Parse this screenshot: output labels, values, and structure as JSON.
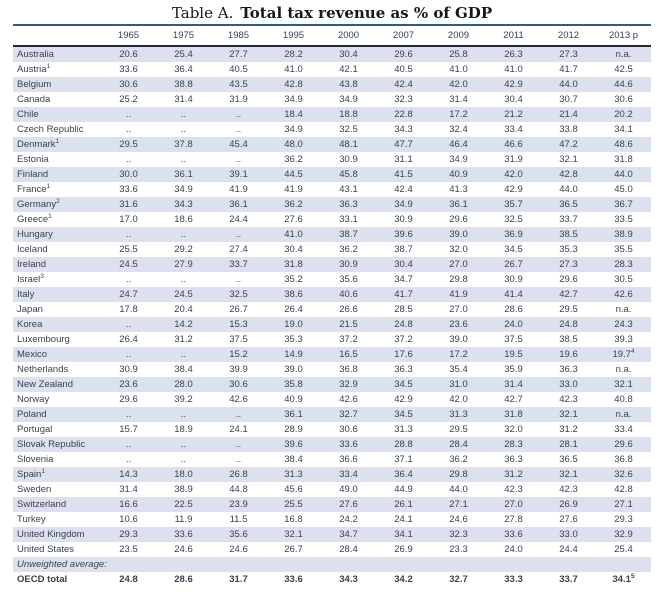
{
  "title": {
    "prefix": "Table A.",
    "main": "Total tax revenue as % of GDP"
  },
  "colors": {
    "row_shade": "#dbe1ee",
    "top_rule": "#2b5f7e",
    "header_rule": "#1e2a37",
    "text": "#39424c"
  },
  "table": {
    "columns": [
      "1965",
      "1975",
      "1985",
      "1995",
      "2000",
      "2007",
      "2009",
      "2011",
      "2012",
      "2013 p"
    ],
    "rows": [
      {
        "country": "Australia",
        "sup": "",
        "style": "",
        "values": [
          "20.6",
          "25.4",
          "27.7",
          "28.2",
          "30.4",
          "29.6",
          "25.8",
          "26.3",
          "27.3",
          "n.a."
        ]
      },
      {
        "country": "Austria",
        "sup": "1",
        "style": "",
        "values": [
          "33.6",
          "36.4",
          "40.5",
          "41.0",
          "42.1",
          "40.5",
          "41.0",
          "41.0",
          "41.7",
          "42.5"
        ]
      },
      {
        "country": "Belgium",
        "sup": "",
        "style": "",
        "values": [
          "30.6",
          "38.8",
          "43.5",
          "42.8",
          "43.8",
          "42.4",
          "42.0",
          "42.9",
          "44.0",
          "44.6"
        ]
      },
      {
        "country": "Canada",
        "sup": "",
        "style": "",
        "values": [
          "25.2",
          "31.4",
          "31.9",
          "34.9",
          "34.9",
          "32.3",
          "31.4",
          "30.4",
          "30.7",
          "30.6"
        ]
      },
      {
        "country": "Chile",
        "sup": "",
        "style": "",
        "values": [
          "..",
          "..",
          "..",
          "18.4",
          "18.8",
          "22.8",
          "17.2",
          "21.2",
          "21.4",
          "20.2"
        ]
      },
      {
        "country": "Czech Republic",
        "sup": "",
        "style": "",
        "values": [
          "..",
          "..",
          "..",
          "34.9",
          "32.5",
          "34.3",
          "32.4",
          "33.4",
          "33.8",
          "34.1"
        ]
      },
      {
        "country": "Denmark",
        "sup": "1",
        "style": "",
        "values": [
          "29.5",
          "37.8",
          "45.4",
          "48.0",
          "48.1",
          "47.7",
          "46.4",
          "46.6",
          "47.2",
          "48.6"
        ]
      },
      {
        "country": "Estonia",
        "sup": "",
        "style": "",
        "values": [
          "..",
          "..",
          "..",
          "36.2",
          "30.9",
          "31.1",
          "34.9",
          "31.9",
          "32.1",
          "31.8"
        ]
      },
      {
        "country": "Finland",
        "sup": "",
        "style": "",
        "values": [
          "30.0",
          "36.1",
          "39.1",
          "44.5",
          "45.8",
          "41.5",
          "40.9",
          "42.0",
          "42.8",
          "44.0"
        ]
      },
      {
        "country": "France",
        "sup": "1",
        "style": "",
        "values": [
          "33.6",
          "34.9",
          "41.9",
          "41.9",
          "43.1",
          "42.4",
          "41.3",
          "42.9",
          "44.0",
          "45.0"
        ]
      },
      {
        "country": "Germany",
        "sup": "2",
        "style": "",
        "values": [
          "31.6",
          "34.3",
          "36.1",
          "36.2",
          "36.3",
          "34.9",
          "36.1",
          "35.7",
          "36.5",
          "36.7"
        ]
      },
      {
        "country": "Greece",
        "sup": "1",
        "style": "",
        "values": [
          "17.0",
          "18.6",
          "24.4",
          "27.6",
          "33.1",
          "30.9",
          "29.6",
          "32.5",
          "33.7",
          "33.5"
        ]
      },
      {
        "country": "Hungary",
        "sup": "",
        "style": "",
        "values": [
          "..",
          "..",
          "..",
          "41.0",
          "38.7",
          "39.6",
          "39.0",
          "36.9",
          "38.5",
          "38.9"
        ]
      },
      {
        "country": "Iceland",
        "sup": "",
        "style": "",
        "values": [
          "25.5",
          "29.2",
          "27.4",
          "30.4",
          "36.2",
          "38.7",
          "32.0",
          "34.5",
          "35.3",
          "35.5"
        ]
      },
      {
        "country": "Ireland",
        "sup": "",
        "style": "",
        "values": [
          "24.5",
          "27.9",
          "33.7",
          "31.8",
          "30.9",
          "30.4",
          "27.0",
          "26.7",
          "27.3",
          "28.3"
        ]
      },
      {
        "country": "Israel",
        "sup": "3",
        "style": "",
        "values": [
          "..",
          "..",
          "..",
          "35.2",
          "35.6",
          "34.7",
          "29.8",
          "30.9",
          "29.6",
          "30.5"
        ]
      },
      {
        "country": "Italy",
        "sup": "",
        "style": "",
        "values": [
          "24.7",
          "24.5",
          "32.5",
          "38.6",
          "40.6",
          "41.7",
          "41.9",
          "41.4",
          "42.7",
          "42.6"
        ]
      },
      {
        "country": "Japan",
        "sup": "",
        "style": "",
        "values": [
          "17.8",
          "20.4",
          "26.7",
          "26.4",
          "26.6",
          "28.5",
          "27.0",
          "28.6",
          "29.5",
          "n.a."
        ]
      },
      {
        "country": "Korea",
        "sup": "",
        "style": "",
        "values": [
          "..",
          "14.2",
          "15.3",
          "19.0",
          "21.5",
          "24.8",
          "23.6",
          "24.0",
          "24.8",
          "24.3"
        ]
      },
      {
        "country": "Luxembourg",
        "sup": "",
        "style": "",
        "values": [
          "26.4",
          "31.2",
          "37.5",
          "35.3",
          "37.2",
          "37.2",
          "39.0",
          "37.5",
          "38.5",
          "39.3"
        ]
      },
      {
        "country": "Mexico",
        "sup": "",
        "style": "",
        "values": [
          "..",
          "..",
          "15.2",
          "14.9",
          "16.5",
          "17.6",
          "17.2",
          "19.5",
          "19.6",
          "19.7^4"
        ]
      },
      {
        "country": "Netherlands",
        "sup": "",
        "style": "",
        "values": [
          "30.9",
          "38.4",
          "39.9",
          "39.0",
          "36.8",
          "36.3",
          "35.4",
          "35.9",
          "36.3",
          "n.a."
        ]
      },
      {
        "country": "New Zealand",
        "sup": "",
        "style": "",
        "values": [
          "23.6",
          "28.0",
          "30.6",
          "35.8",
          "32.9",
          "34.5",
          "31.0",
          "31.4",
          "33.0",
          "32.1"
        ]
      },
      {
        "country": "Norway",
        "sup": "",
        "style": "",
        "values": [
          "29.6",
          "39.2",
          "42.6",
          "40.9",
          "42.6",
          "42.9",
          "42.0",
          "42.7",
          "42.3",
          "40.8"
        ]
      },
      {
        "country": "Poland",
        "sup": "",
        "style": "",
        "values": [
          "..",
          "..",
          "..",
          "36.1",
          "32.7",
          "34.5",
          "31.3",
          "31.8",
          "32.1",
          "n.a."
        ]
      },
      {
        "country": "Portugal",
        "sup": "",
        "style": "",
        "values": [
          "15.7",
          "18.9",
          "24.1",
          "28.9",
          "30.6",
          "31.3",
          "29.5",
          "32.0",
          "31.2",
          "33.4"
        ]
      },
      {
        "country": "Slovak Republic",
        "sup": "",
        "style": "",
        "values": [
          "..",
          "..",
          "..",
          "39.6",
          "33.6",
          "28.8",
          "28.4",
          "28.3",
          "28.1",
          "29.6"
        ]
      },
      {
        "country": "Slovenia",
        "sup": "",
        "style": "",
        "values": [
          "..",
          "..",
          "..",
          "38.4",
          "36.6",
          "37.1",
          "36.2",
          "36.3",
          "36.5",
          "36.8"
        ]
      },
      {
        "country": "Spain",
        "sup": "1",
        "style": "",
        "values": [
          "14.3",
          "18.0",
          "26.8",
          "31.3",
          "33.4",
          "36.4",
          "29.8",
          "31.2",
          "32.1",
          "32.6"
        ]
      },
      {
        "country": "Sweden",
        "sup": "",
        "style": "",
        "values": [
          "31.4",
          "38.9",
          "44.8",
          "45.6",
          "49.0",
          "44.9",
          "44.0",
          "42.3",
          "42.3",
          "42.8"
        ]
      },
      {
        "country": "Switzerland",
        "sup": "",
        "style": "",
        "values": [
          "16.6",
          "22.5",
          "23.9",
          "25.5",
          "27.6",
          "26.1",
          "27.1",
          "27.0",
          "26.9",
          "27.1"
        ]
      },
      {
        "country": "Turkey",
        "sup": "",
        "style": "",
        "values": [
          "10.6",
          "11.9",
          "11.5",
          "16.8",
          "24.2",
          "24.1",
          "24.6",
          "27.8",
          "27.6",
          "29.3"
        ]
      },
      {
        "country": "United Kingdom",
        "sup": "",
        "style": "",
        "values": [
          "29.3",
          "33.6",
          "35.6",
          "32.1",
          "34.7",
          "34.1",
          "32.3",
          "33.6",
          "33.0",
          "32.9"
        ]
      },
      {
        "country": "United States",
        "sup": "",
        "style": "",
        "values": [
          "23.5",
          "24.6",
          "24.6",
          "26.7",
          "28.4",
          "26.9",
          "23.3",
          "24.0",
          "24.4",
          "25.4"
        ]
      },
      {
        "country": "Unweighted average:",
        "sup": "",
        "style": "italic",
        "values": [
          "",
          "",
          "",
          "",
          "",
          "",
          "",
          "",
          "",
          ""
        ]
      },
      {
        "country": "OECD total",
        "sup": "",
        "style": "bold",
        "values": [
          "24.8",
          "28.6",
          "31.7",
          "33.6",
          "34.3",
          "34.2",
          "32.7",
          "33.3",
          "33.7",
          "34.1^5"
        ]
      }
    ]
  }
}
